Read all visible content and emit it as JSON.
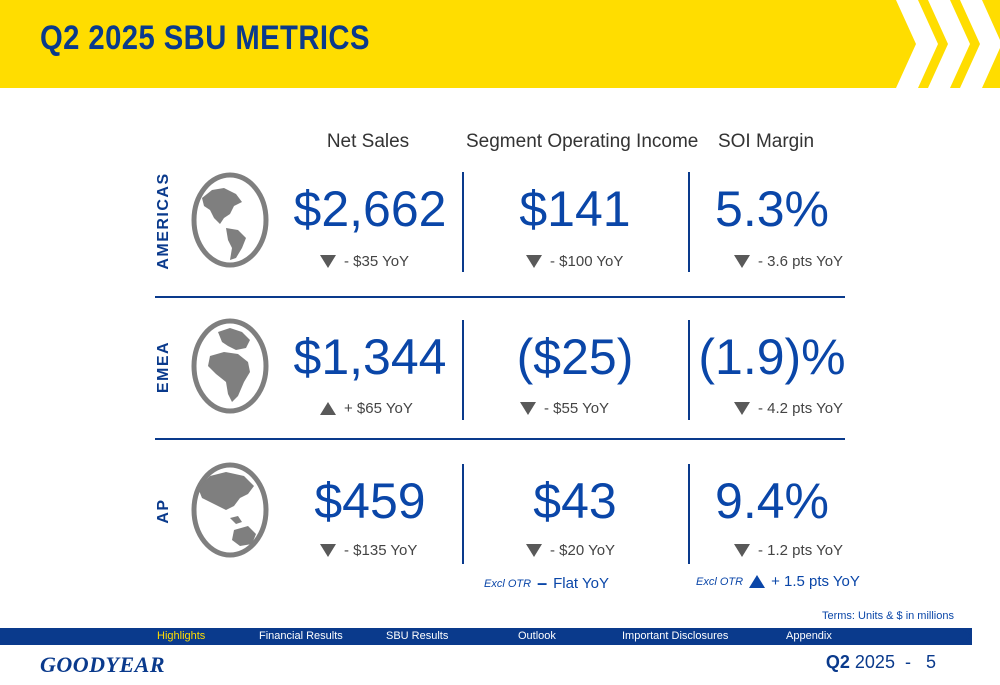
{
  "title": "Q2 2025 SBU METRICS",
  "columns": [
    "Net Sales",
    "Segment Operating Income",
    "SOI Margin"
  ],
  "regions": [
    {
      "label": "AMERICAS",
      "globe_icon": "globe-americas-icon",
      "net_sales": "$2,662",
      "net_sales_delta": "- $35 YoY",
      "net_sales_dir": "down",
      "soi": "$141",
      "soi_delta": "- $100 YoY",
      "soi_dir": "down",
      "margin": "5.3%",
      "margin_delta": "- 3.6 pts YoY",
      "margin_dir": "down"
    },
    {
      "label": "EMEA",
      "globe_icon": "globe-europe-africa-icon",
      "net_sales": "$1,344",
      "net_sales_delta": "+ $65 YoY",
      "net_sales_dir": "up",
      "soi": "($25)",
      "soi_delta": "- $55 YoY",
      "soi_dir": "down",
      "margin": "(1.9)%",
      "margin_delta": "- 4.2 pts YoY",
      "margin_dir": "down"
    },
    {
      "label": "AP",
      "globe_icon": "globe-asia-pacific-icon",
      "net_sales": "$459",
      "net_sales_delta": "- $135 YoY",
      "net_sales_dir": "down",
      "soi": "$43",
      "soi_delta": "- $20 YoY",
      "soi_dir": "down",
      "margin": "9.4%",
      "margin_delta": "- 1.2 pts YoY",
      "margin_dir": "down"
    }
  ],
  "excl_otr": {
    "label": "Excl OTR",
    "soi": "Flat YoY",
    "margin": "+ 1.5 pts YoY"
  },
  "terms": "Terms: Units & $ in millions",
  "nav": [
    "Highlights",
    "Financial Results",
    "SBU Results",
    "Outlook",
    "Important Disclosures",
    "Appendix"
  ],
  "nav_active": "Highlights",
  "logo": "GOODYEAR",
  "page": {
    "quarter": "Q2",
    "year": "2025",
    "sep": "-",
    "number": "5"
  },
  "colors": {
    "yellow": "#ffdd00",
    "navy": "#0a3a8c",
    "blue": "#0a46a8",
    "gray": "#595959"
  }
}
